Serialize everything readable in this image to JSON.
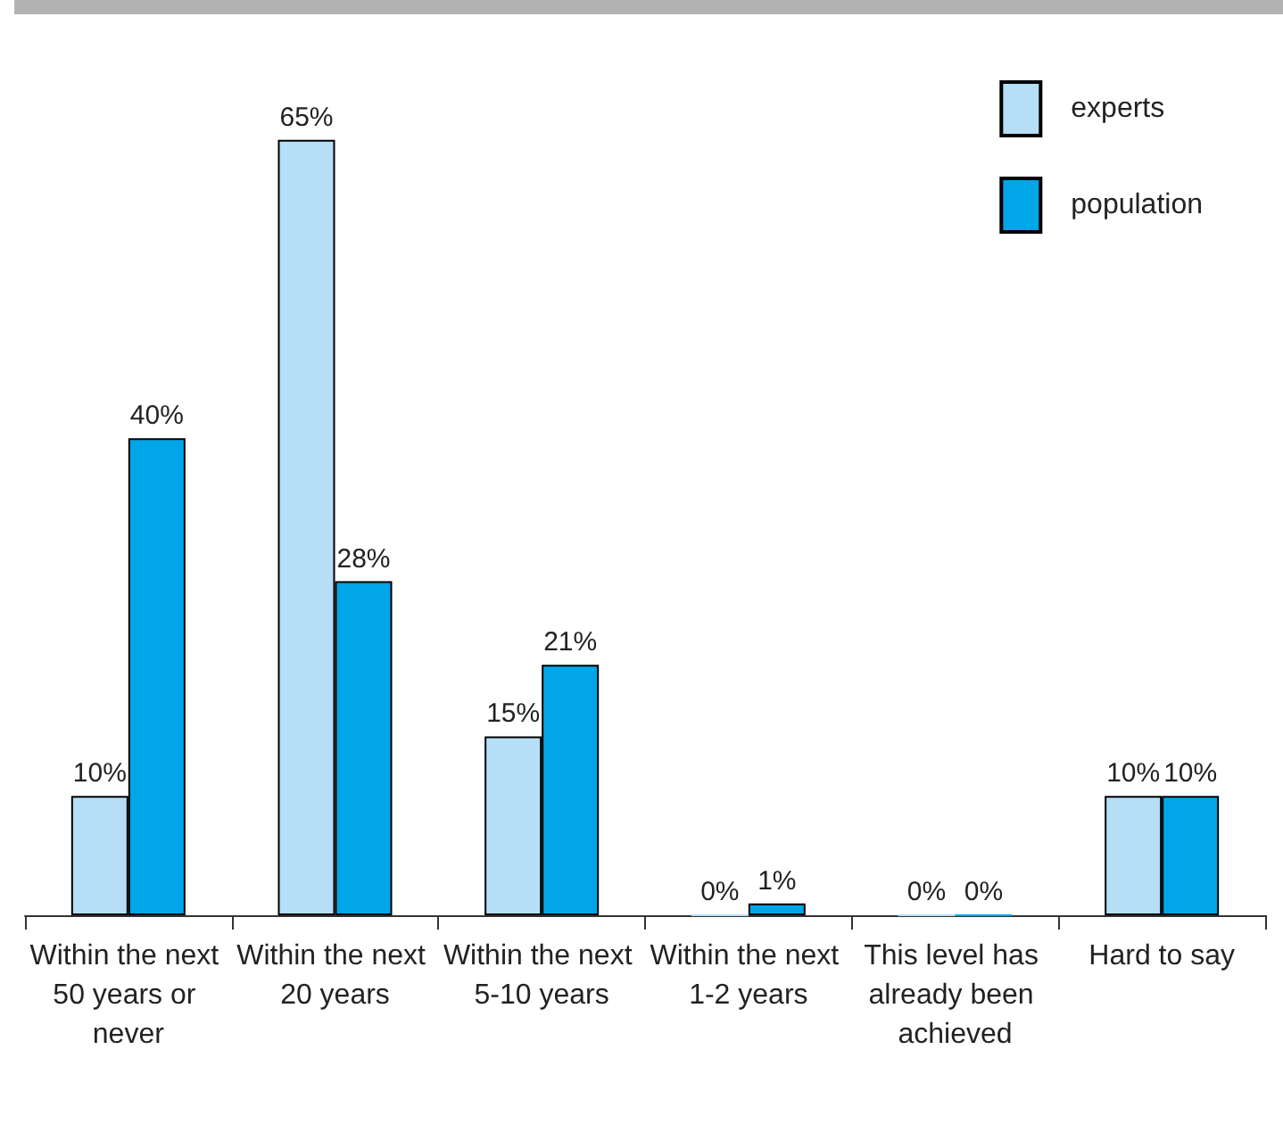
{
  "chart_data": {
    "type": "bar",
    "categories": [
      "Within the next 50 years or never",
      "Within the next 20 years",
      "Within the next 5-10 years",
      "Within the next 1-2 years",
      "This level has already been achieved",
      "Hard to say"
    ],
    "series": [
      {
        "name": "experts",
        "color": "#b6def6",
        "values": [
          10,
          65,
          15,
          0,
          0,
          10
        ],
        "value_labels": [
          "10%",
          "65%",
          "15%",
          "0%",
          "0%",
          "10%"
        ]
      },
      {
        "name": "population",
        "color": "#00a6e8",
        "values": [
          40,
          28,
          21,
          1,
          0,
          10
        ],
        "value_labels": [
          "40%",
          "28%",
          "21%",
          "1%",
          "0%",
          "10%"
        ]
      }
    ],
    "legend": "top right",
    "grid": false
  }
}
